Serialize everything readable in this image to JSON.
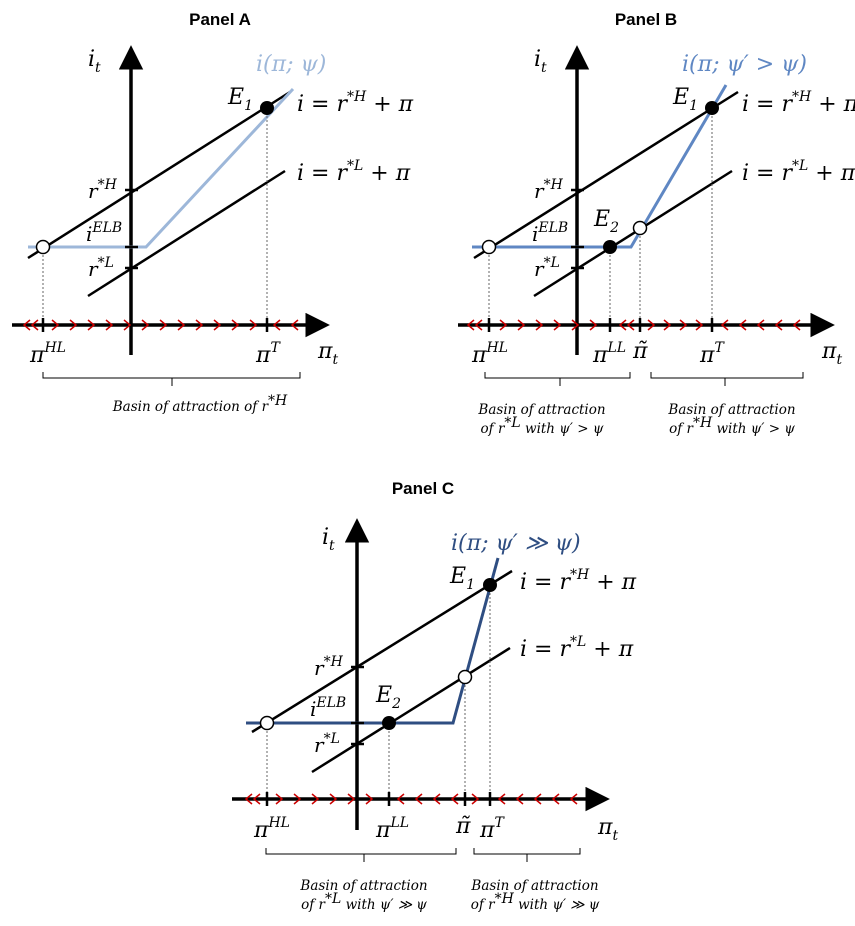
{
  "panel_a": {
    "title": "Panel A",
    "axis_i": "i",
    "axis_i_sub": "t",
    "axis_pi": "π",
    "axis_pi_sub": "t",
    "policy_rule": "i(π; ψ)",
    "E1": "E",
    "E1_sub": "1",
    "line_high_a": "i = r",
    "line_high_sup": "*H",
    "line_high_b": " + π",
    "line_low_a": "i = r",
    "line_low_sup": "*L",
    "line_low_b": " + π",
    "rH": "r",
    "rH_sup": "*H",
    "rL": "r",
    "rL_sup": "*L",
    "ielb": "i",
    "ielb_sup": "ELB",
    "piHL": "π",
    "piHL_sup": "HL",
    "piT": "π",
    "piT_sup": "T",
    "basin_text": "Basin of attraction of r",
    "basin_sup": "*H"
  },
  "panel_b": {
    "title": "Panel B",
    "axis_i": "i",
    "axis_i_sub": "t",
    "axis_pi": "π",
    "axis_pi_sub": "t",
    "policy_rule": "i(π; ψ′ > ψ)",
    "E1": "E",
    "E1_sub": "1",
    "E2": "E",
    "E2_sub": "2",
    "line_high_a": "i = r",
    "line_high_sup": "*H",
    "line_high_b": " + π",
    "line_low_a": "i = r",
    "line_low_sup": "*L",
    "line_low_b": " + π",
    "rH": "r",
    "rH_sup": "*H",
    "rL": "r",
    "rL_sup": "*L",
    "ielb": "i",
    "ielb_sup": "ELB",
    "piHL": "π",
    "piHL_sup": "HL",
    "piLL": "π",
    "piLL_sup": "LL",
    "pitilde": "π̃",
    "piT": "π",
    "piT_sup": "T",
    "basin_left_1": "Basin of attraction",
    "basin_left_2a": "of r",
    "basin_left_2sup": "*L",
    "basin_left_2b": " with ψ′ > ψ",
    "basin_right_1": "Basin of attraction",
    "basin_right_2a": "of r",
    "basin_right_2sup": "*H",
    "basin_right_2b": " with ψ′ > ψ"
  },
  "panel_c": {
    "title": "Panel C",
    "axis_i": "i",
    "axis_i_sub": "t",
    "axis_pi": "π",
    "axis_pi_sub": "t",
    "policy_rule": "i(π; ψ′ ≫ ψ)",
    "E1": "E",
    "E1_sub": "1",
    "E2": "E",
    "E2_sub": "2",
    "line_high_a": "i = r",
    "line_high_sup": "*H",
    "line_high_b": " + π",
    "line_low_a": "i = r",
    "line_low_sup": "*L",
    "line_low_b": " + π",
    "rH": "r",
    "rH_sup": "*H",
    "rL": "r",
    "rL_sup": "*L",
    "ielb": "i",
    "ielb_sup": "ELB",
    "piHL": "π",
    "piHL_sup": "HL",
    "piLL": "π",
    "piLL_sup": "LL",
    "pitilde": "π̃",
    "piT": "π",
    "piT_sup": "T",
    "basin_left_1": "Basin of attraction",
    "basin_left_2a": "of r",
    "basin_left_2sup": "*L",
    "basin_left_2b": " with ψ′ ≫ ψ",
    "basin_right_1": "Basin of attraction",
    "basin_right_2a": "of r",
    "basin_right_2sup": "*H",
    "basin_right_2b": " with ψ′ ≫ ψ"
  },
  "colors": {
    "rule_a": "#9db7d9",
    "rule_b": "#5f87c3",
    "rule_c": "#2f4e82",
    "arrows": "#cc0000",
    "axes": "#000000"
  }
}
